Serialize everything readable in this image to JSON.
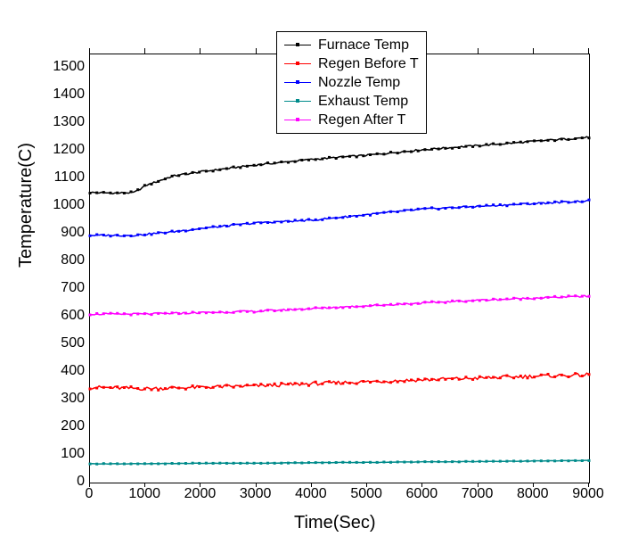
{
  "chart": {
    "type": "line",
    "xlabel": "Time(Sec)",
    "ylabel": "Temperature(C)",
    "xlim": [
      0,
      9000
    ],
    "ylim": [
      0,
      1550
    ],
    "xtick_step": 1000,
    "ytick_step": 100,
    "xticks": [
      0,
      1000,
      2000,
      3000,
      4000,
      5000,
      6000,
      7000,
      8000,
      9000
    ],
    "yticks": [
      0,
      100,
      200,
      300,
      400,
      500,
      600,
      700,
      800,
      900,
      1000,
      1100,
      1200,
      1300,
      1400,
      1500
    ],
    "background_color": "#ffffff",
    "border_color": "#000000",
    "label_fontsize": 20,
    "tick_fontsize": 16,
    "legend_fontsize": 16,
    "legend_position": "top-center-right",
    "marker_style": "square",
    "marker_size": 3,
    "line_width": 1.5,
    "noise_amplitude": 8,
    "series": [
      {
        "name": "Furnace Temp",
        "color": "#000000",
        "x": [
          0,
          500,
          800,
          1000,
          1500,
          2000,
          3000,
          4000,
          5000,
          6000,
          7000,
          8000,
          9000
        ],
        "y": [
          1050,
          1048,
          1050,
          1075,
          1110,
          1125,
          1150,
          1170,
          1185,
          1205,
          1220,
          1235,
          1250
        ]
      },
      {
        "name": "Regen Before T",
        "color": "#ff0000",
        "x": [
          0,
          1000,
          2000,
          3000,
          4000,
          5000,
          6000,
          7000,
          8000,
          9000
        ],
        "y": [
          345,
          340,
          345,
          350,
          358,
          365,
          372,
          378,
          385,
          390
        ]
      },
      {
        "name": "Nozzle Temp",
        "color": "#0000ff",
        "x": [
          0,
          800,
          1500,
          2000,
          3000,
          4000,
          5000,
          6000,
          7000,
          8000,
          9000
        ],
        "y": [
          895,
          895,
          908,
          920,
          940,
          950,
          970,
          990,
          1000,
          1010,
          1020
        ]
      },
      {
        "name": "Exhaust Temp",
        "color": "#008b8b",
        "x": [
          0,
          1000,
          2000,
          3000,
          4000,
          5000,
          6000,
          7000,
          8000,
          9000
        ],
        "y": [
          68,
          68,
          70,
          70,
          72,
          73,
          75,
          76,
          78,
          80
        ]
      },
      {
        "name": "Regen After T",
        "color": "#ff00ff",
        "x": [
          0,
          1000,
          2000,
          3000,
          4000,
          5000,
          6000,
          7000,
          8000,
          9000
        ],
        "y": [
          610,
          610,
          615,
          620,
          630,
          640,
          650,
          660,
          668,
          675
        ]
      }
    ]
  }
}
